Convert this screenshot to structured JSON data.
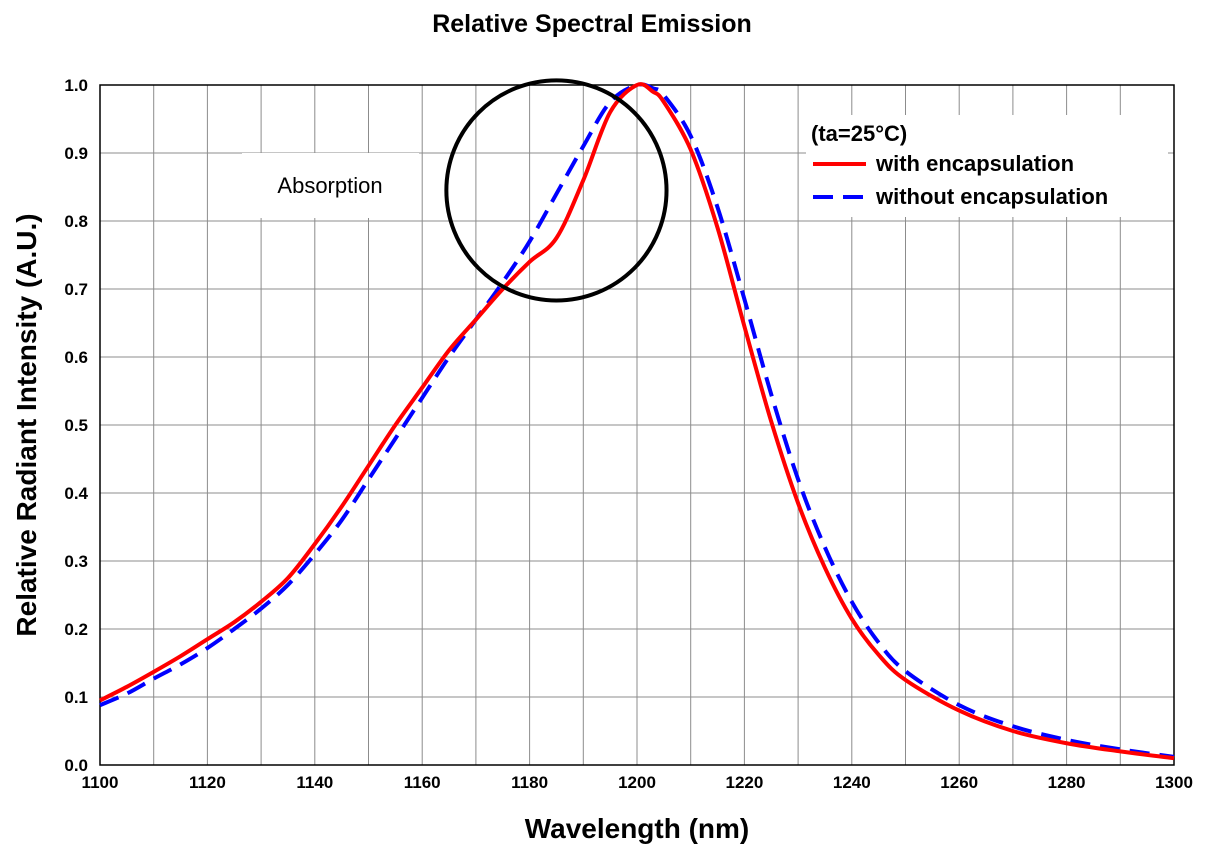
{
  "chart_data": {
    "type": "line",
    "title": "Relative Spectral Emission",
    "xlabel": "Wavelength (nm)",
    "ylabel": "Relative Radiant Intensity (A.U.)",
    "xlim": [
      1100,
      1300
    ],
    "ylim": [
      0.0,
      1.0
    ],
    "x_ticks": [
      "1100",
      "1120",
      "1140",
      "1160",
      "1180",
      "1200",
      "1220",
      "1240",
      "1260",
      "1280",
      "1300"
    ],
    "y_ticks": [
      "0.0",
      "0.1",
      "0.2",
      "0.3",
      "0.4",
      "0.5",
      "0.6",
      "0.7",
      "0.8",
      "0.9",
      "1.0"
    ],
    "grid": true,
    "legend": {
      "placement": "top-right",
      "condition": "(ta=25°C)"
    },
    "annotations": {
      "absorption_text": "Absorption",
      "circle_center": [
        1185,
        0.845
      ],
      "circle_radius_x_units": 20.5
    },
    "series": [
      {
        "name": "with encapsulation",
        "color": "#ff0000",
        "style": "solid",
        "x": [
          1100,
          1105,
          1110,
          1115,
          1120,
          1125,
          1130,
          1135,
          1140,
          1145,
          1150,
          1155,
          1160,
          1165,
          1170,
          1175,
          1180,
          1185,
          1190,
          1195,
          1200,
          1203,
          1205,
          1210,
          1215,
          1220,
          1225,
          1230,
          1235,
          1240,
          1245,
          1250,
          1260,
          1270,
          1280,
          1290,
          1300
        ],
        "y": [
          0.095,
          0.115,
          0.137,
          0.16,
          0.185,
          0.21,
          0.24,
          0.275,
          0.325,
          0.38,
          0.44,
          0.5,
          0.555,
          0.61,
          0.655,
          0.7,
          0.74,
          0.775,
          0.86,
          0.96,
          1.0,
          0.99,
          0.975,
          0.905,
          0.79,
          0.645,
          0.505,
          0.385,
          0.29,
          0.215,
          0.162,
          0.125,
          0.08,
          0.05,
          0.032,
          0.02,
          0.01
        ]
      },
      {
        "name": "without encapsulation",
        "color": "#0000ff",
        "style": "dashed",
        "x": [
          1100,
          1105,
          1110,
          1115,
          1120,
          1125,
          1130,
          1135,
          1140,
          1145,
          1150,
          1155,
          1160,
          1165,
          1170,
          1175,
          1180,
          1185,
          1190,
          1195,
          1200,
          1203,
          1205,
          1210,
          1215,
          1220,
          1225,
          1230,
          1235,
          1240,
          1245,
          1250,
          1260,
          1270,
          1280,
          1290,
          1300
        ],
        "y": [
          0.088,
          0.105,
          0.127,
          0.148,
          0.172,
          0.2,
          0.23,
          0.265,
          0.31,
          0.36,
          0.42,
          0.48,
          0.54,
          0.6,
          0.655,
          0.71,
          0.77,
          0.84,
          0.91,
          0.975,
          1.0,
          0.995,
          0.985,
          0.925,
          0.82,
          0.685,
          0.545,
          0.42,
          0.32,
          0.24,
          0.18,
          0.138,
          0.088,
          0.057,
          0.037,
          0.023,
          0.012
        ]
      }
    ]
  }
}
